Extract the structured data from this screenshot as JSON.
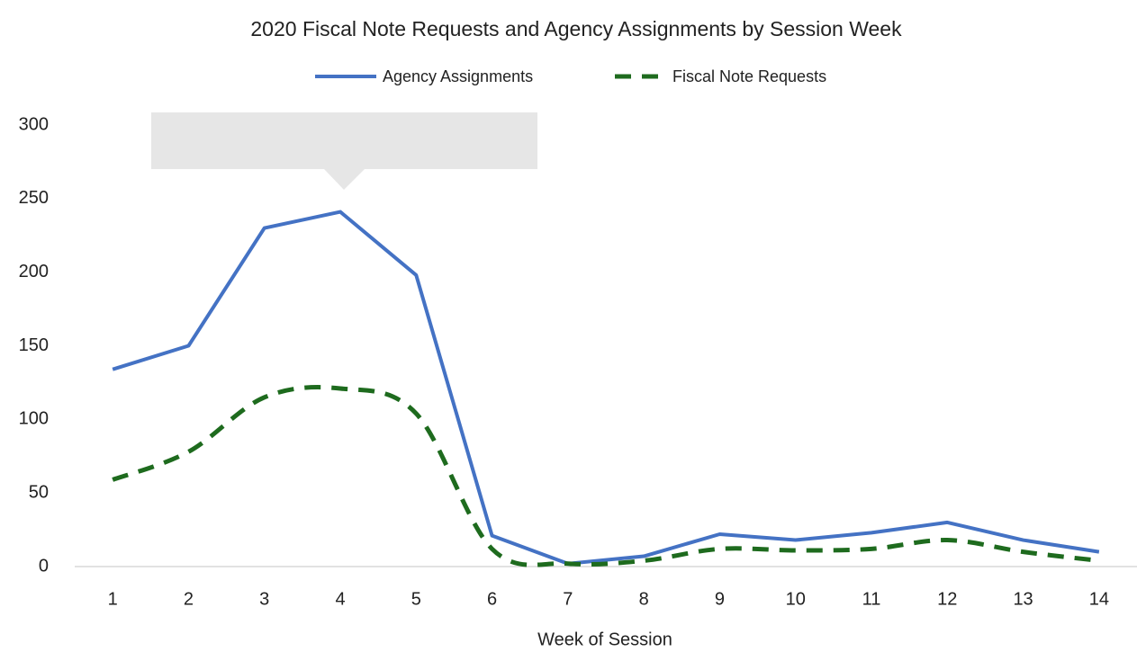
{
  "chart_data": {
    "type": "line",
    "title": "2020 Fiscal Note Requests and Agency Assignments by Session Week",
    "x_label": "Week of Session",
    "categories": [
      "1",
      "2",
      "3",
      "4",
      "5",
      "6",
      "7",
      "8",
      "9",
      "10",
      "11",
      "12",
      "13",
      "14"
    ],
    "series": [
      {
        "name": "Agency Assignments",
        "color": "#4472c4",
        "dash": false,
        "values": [
          134,
          150,
          230,
          241,
          198,
          21,
          2,
          7,
          22,
          18,
          23,
          30,
          18,
          10
        ]
      },
      {
        "name": "Fiscal Note Requests",
        "color": "#1e6b1e",
        "dash": true,
        "values": [
          59,
          78,
          115,
          121,
          104,
          12,
          2,
          4,
          12,
          11,
          12,
          18,
          10,
          4
        ]
      }
    ],
    "ylim": [
      0,
      300
    ],
    "yticks": [
      0,
      50,
      100,
      150,
      200,
      250,
      300
    ],
    "grid": false,
    "legend": "top"
  }
}
